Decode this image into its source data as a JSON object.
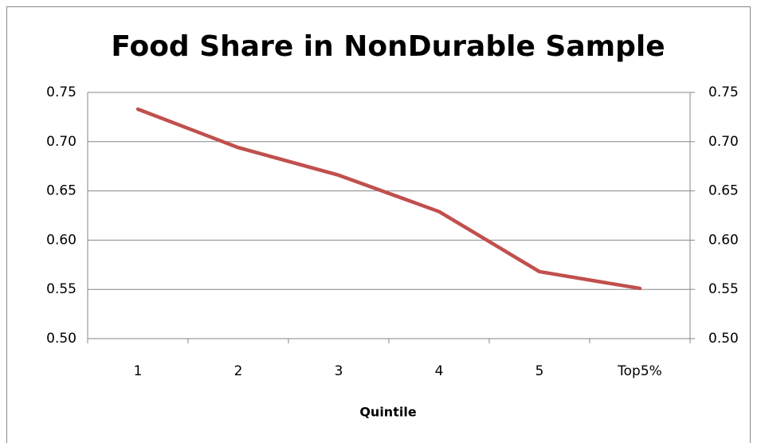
{
  "chart_data": {
    "type": "line",
    "title": "Food Share in NonDurable Sample",
    "x_label": "Quintile",
    "categories": [
      "1",
      "2",
      "3",
      "4",
      "5",
      "Top5%"
    ],
    "values": [
      0.733,
      0.694,
      0.666,
      0.629,
      0.568,
      0.551
    ],
    "color": "#c0504d",
    "ylim": [
      0.5,
      0.75
    ],
    "yticks": [
      {
        "value": 0.5,
        "label": "0.50"
      },
      0.55,
      {
        "value": 0.6,
        "label": "0.60"
      },
      0.65,
      {
        "value": 0.7,
        "label": "0.70"
      },
      0.75
    ],
    "y2lim": [
      0.5,
      0.75
    ],
    "y2ticks": [
      {
        "value": 0.5,
        "label": "0.50"
      },
      0.55,
      {
        "value": 0.6,
        "label": "0.60"
      },
      0.65,
      {
        "value": 0.7,
        "label": "0.70"
      },
      0.75
    ],
    "grid": true
  }
}
